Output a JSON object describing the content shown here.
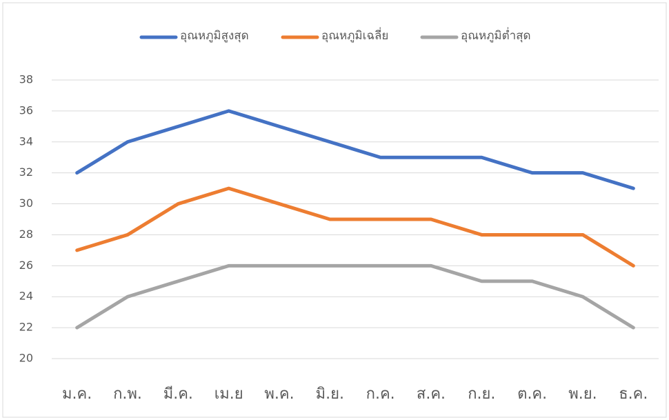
{
  "chart_data": {
    "type": "line",
    "categories": [
      "ม.ค.",
      "ก.พ.",
      "มี.ค.",
      "เม.ย",
      "พ.ค.",
      "มิ.ย.",
      "ก.ค.",
      "ส.ค.",
      "ก.ย.",
      "ต.ค.",
      "พ.ย.",
      "ธ.ค."
    ],
    "series": [
      {
        "name": "อุณหภูมิสูงสุด",
        "color": "#4472c4",
        "values": [
          32,
          34,
          35,
          36,
          35,
          34,
          33,
          33,
          33,
          32,
          32,
          31
        ]
      },
      {
        "name": "อุณหภูมิเฉลี่ย",
        "color": "#ed7d31",
        "values": [
          27,
          28,
          30,
          31,
          30,
          29,
          29,
          29,
          28,
          28,
          28,
          26
        ]
      },
      {
        "name": "อุณหภูมิต่ำสุด",
        "color": "#a5a5a5",
        "values": [
          22,
          24,
          25,
          26,
          26,
          26,
          26,
          26,
          25,
          25,
          24,
          22
        ]
      }
    ],
    "ylim": [
      20,
      38
    ],
    "yticks": [
      20,
      22,
      24,
      26,
      28,
      30,
      32,
      34,
      36,
      38
    ],
    "grid": true,
    "legend": "top"
  }
}
